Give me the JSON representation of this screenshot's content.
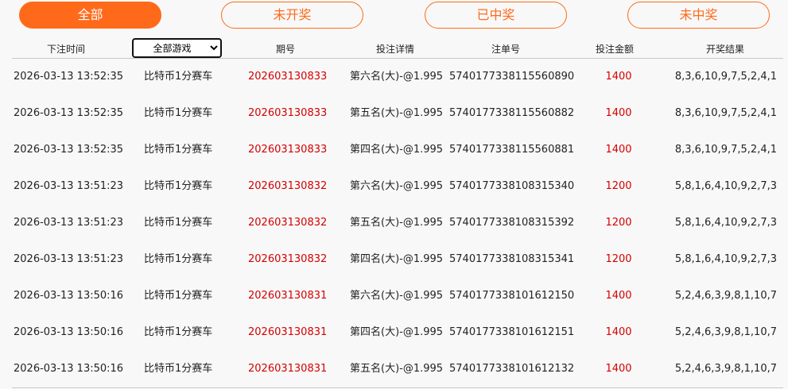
{
  "tabs": [
    "全部",
    "未开奖",
    "已中奖",
    "未中奖"
  ],
  "table": {
    "headers": [
      "下注时间",
      "全部游戏",
      "期号",
      "投注详情",
      "注单号",
      "投注金额",
      "开奖结果"
    ],
    "rows": [
      [
        "2026-03-13 13:52:35",
        "比特币1分赛车",
        "202603130833",
        "第六名(大)-@1.995",
        "5740177338115560890",
        "1400",
        "8,3,6,10,9,7,5,2,4,1"
      ],
      [
        "2026-03-13 13:52:35",
        "比特币1分赛车",
        "202603130833",
        "第五名(大)-@1.995",
        "5740177338115560882",
        "1400",
        "8,3,6,10,9,7,5,2,4,1"
      ],
      [
        "2026-03-13 13:52:35",
        "比特币1分赛车",
        "202603130833",
        "第四名(大)-@1.995",
        "5740177338115560881",
        "1400",
        "8,3,6,10,9,7,5,2,4,1"
      ],
      [
        "2026-03-13 13:51:23",
        "比特币1分赛车",
        "202603130832",
        "第六名(大)-@1.995",
        "5740177338108315340",
        "1200",
        "5,8,1,6,4,10,9,2,7,3"
      ],
      [
        "2026-03-13 13:51:23",
        "比特币1分赛车",
        "202603130832",
        "第五名(大)-@1.995",
        "5740177338108315392",
        "1200",
        "5,8,1,6,4,10,9,2,7,3"
      ],
      [
        "2026-03-13 13:51:23",
        "比特币1分赛车",
        "202603130832",
        "第四名(大)-@1.995",
        "5740177338108315341",
        "1200",
        "5,8,1,6,4,10,9,2,7,3"
      ],
      [
        "2026-03-13 13:50:16",
        "比特币1分赛车",
        "202603130831",
        "第六名(大)-@1.995",
        "5740177338101612150",
        "1400",
        "5,2,4,6,3,9,8,1,10,7"
      ],
      [
        "2026-03-13 13:50:16",
        "比特币1分赛车",
        "202603130831",
        "第四名(大)-@1.995",
        "5740177338101612151",
        "1400",
        "5,2,4,6,3,9,8,1,10,7"
      ],
      [
        "2026-03-13 13:50:16",
        "比特币1分赛车",
        "202603130831",
        "第五名(大)-@1.995",
        "5740177338101612132",
        "1400",
        "5,2,4,6,3,9,8,1,10,7"
      ]
    ]
  }
}
